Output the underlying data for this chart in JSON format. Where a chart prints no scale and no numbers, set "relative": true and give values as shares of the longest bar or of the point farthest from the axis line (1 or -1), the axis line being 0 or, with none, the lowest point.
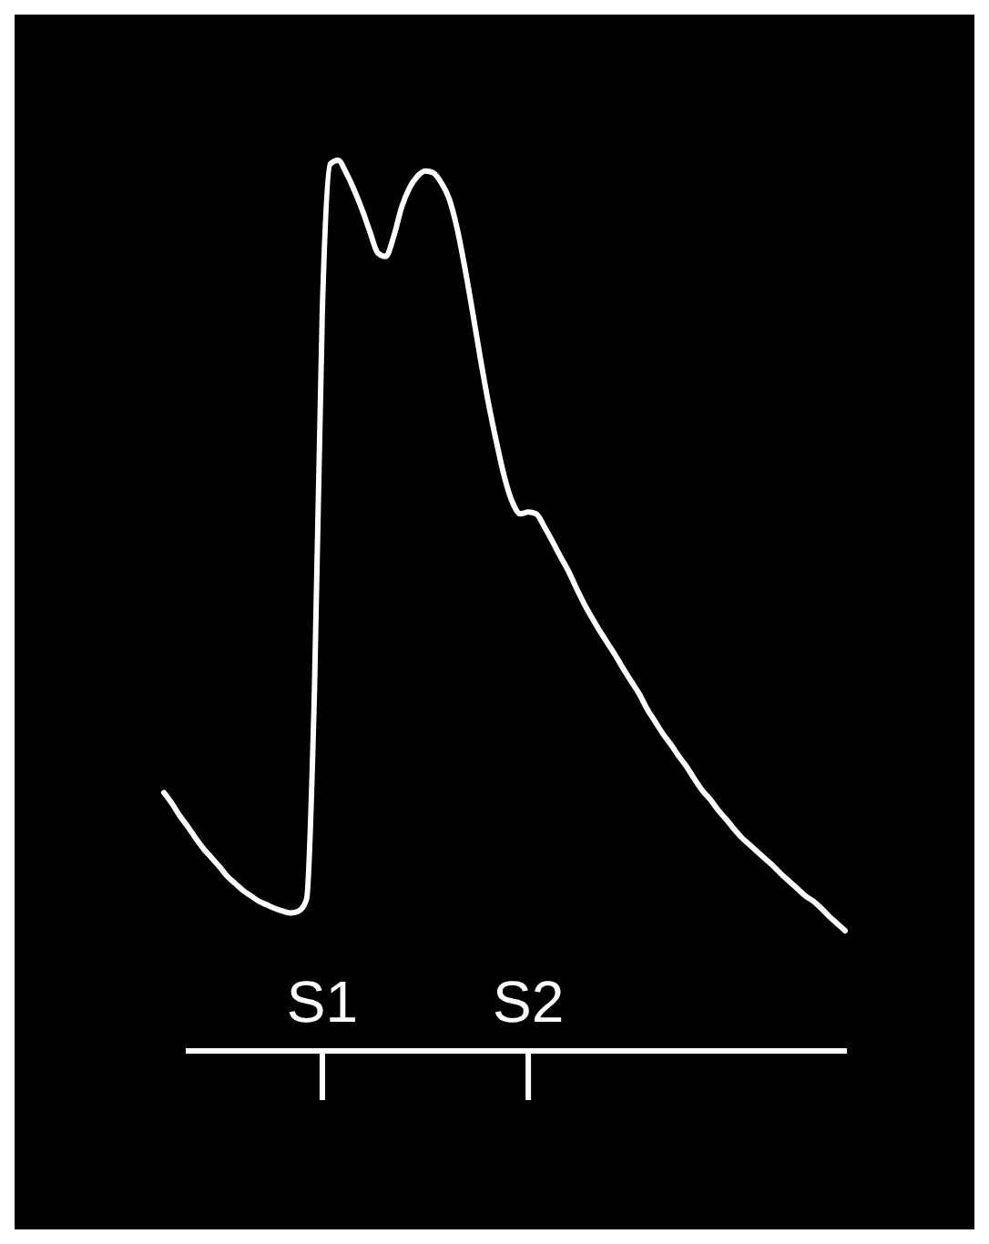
{
  "chart_data": {
    "type": "line",
    "relative": true,
    "categories": [
      null,
      null,
      null,
      null,
      null,
      null,
      null,
      null,
      null,
      null,
      null,
      null,
      null,
      null,
      null,
      null,
      null,
      null,
      null,
      null,
      "S1",
      null,
      null,
      null,
      null,
      null,
      null,
      null,
      null,
      null,
      null,
      null,
      null,
      null,
      null,
      null,
      null,
      null,
      null,
      null,
      null,
      null,
      null,
      null,
      null,
      null,
      "S2",
      null,
      null,
      null,
      null,
      null,
      null,
      null,
      null,
      null,
      null,
      null,
      null,
      null,
      null,
      null,
      null,
      null,
      null,
      null,
      null,
      null,
      null,
      null,
      null,
      null,
      null,
      null,
      null,
      null,
      null,
      null,
      null,
      null,
      null,
      null,
      null,
      null,
      null,
      null,
      null
    ],
    "series": [
      {
        "color": "#ffffff",
        "values": [
          0.29,
          0.278,
          0.264,
          0.252,
          0.239,
          0.227,
          0.217,
          0.207,
          0.196,
          0.188,
          0.18,
          0.174,
          0.168,
          0.164,
          0.16,
          0.157,
          0.155,
          0.157,
          0.17,
          0.403,
          0.832,
          0.996,
          1,
          0.986,
          0.967,
          0.945,
          0.92,
          0.896,
          0.892,
          0.914,
          0.947,
          0.969,
          0.982,
          0.988,
          0.986,
          0.975,
          0.957,
          0.924,
          0.879,
          0.828,
          0.775,
          0.726,
          0.683,
          0.644,
          0.616,
          0.603,
          0.605,
          0.603,
          0.589,
          0.573,
          0.556,
          0.54,
          0.521,
          0.503,
          0.487,
          0.472,
          0.458,
          0.444,
          0.429,
          0.415,
          0.401,
          0.384,
          0.37,
          0.356,
          0.344,
          0.331,
          0.319,
          0.305,
          0.292,
          0.282,
          0.27,
          0.26,
          0.249,
          0.239,
          0.231,
          0.223,
          0.215,
          0.207,
          0.198,
          0.19,
          0.182,
          0.174,
          0.168,
          0.16,
          0.151,
          0.143,
          0.135
        ]
      }
    ]
  }
}
